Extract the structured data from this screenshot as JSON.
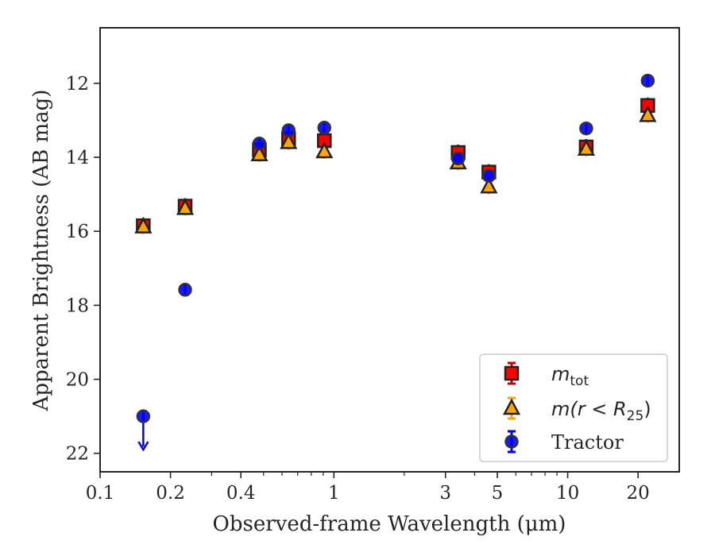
{
  "chart_data": {
    "type": "scatter",
    "title": "",
    "xlabel": "Observed-frame Wavelength (μm)",
    "ylabel": "Apparent Brightness (AB mag)",
    "xscale": "log",
    "xlim": [
      0.1,
      30
    ],
    "ylim": [
      22.5,
      10.5
    ],
    "y_inverted": true,
    "grid": false,
    "legend_position": "bottom-right",
    "x_ticks": [
      0.1,
      0.2,
      0.4,
      1,
      3,
      5,
      10,
      20
    ],
    "x_tick_labels": [
      "0.1",
      "0.2",
      "0.4",
      "1",
      "3",
      "5",
      "10",
      "20"
    ],
    "y_ticks": [
      12,
      14,
      16,
      18,
      20,
      22
    ],
    "y_tick_labels": [
      "12",
      "14",
      "16",
      "18",
      "20",
      "22"
    ],
    "series": [
      {
        "name": "m_tot",
        "legend_label_base": "m",
        "legend_label_sub": "tot",
        "marker": "square",
        "color": "#ff0000",
        "errcolor": "#cc0000",
        "points": [
          {
            "x": 0.153,
            "y": 15.85
          },
          {
            "x": 0.231,
            "y": 15.32
          },
          {
            "x": 0.48,
            "y": 13.8
          },
          {
            "x": 0.64,
            "y": 13.5
          },
          {
            "x": 0.91,
            "y": 13.55
          },
          {
            "x": 3.4,
            "y": 13.87
          },
          {
            "x": 4.6,
            "y": 14.4
          },
          {
            "x": 12.0,
            "y": 13.72
          },
          {
            "x": 22.0,
            "y": 12.6
          }
        ]
      },
      {
        "name": "m(r < R25)",
        "legend_label_base": "m(r < R",
        "legend_label_sub": "25",
        "legend_label_tail": ")",
        "marker": "triangle",
        "color": "#ffa500",
        "errcolor": "#ffa500",
        "points": [
          {
            "x": 0.153,
            "y": 15.88
          },
          {
            "x": 0.231,
            "y": 15.38
          },
          {
            "x": 0.48,
            "y": 13.93
          },
          {
            "x": 0.64,
            "y": 13.6
          },
          {
            "x": 0.91,
            "y": 13.85
          },
          {
            "x": 3.4,
            "y": 14.15
          },
          {
            "x": 4.6,
            "y": 14.8
          },
          {
            "x": 12.0,
            "y": 13.78
          },
          {
            "x": 22.0,
            "y": 12.87
          }
        ]
      },
      {
        "name": "Tractor",
        "legend_label_base": "Tractor",
        "marker": "circle",
        "color": "#0000ff",
        "errcolor": "#0000ff",
        "points": [
          {
            "x": 0.153,
            "y": 21.0,
            "upper_limit": true
          },
          {
            "x": 0.231,
            "y": 17.58
          },
          {
            "x": 0.48,
            "y": 13.63
          },
          {
            "x": 0.64,
            "y": 13.27
          },
          {
            "x": 0.91,
            "y": 13.2
          },
          {
            "x": 3.4,
            "y": 14.03
          },
          {
            "x": 4.6,
            "y": 14.5
          },
          {
            "x": 12.0,
            "y": 13.22
          },
          {
            "x": 22.0,
            "y": 11.93
          }
        ]
      }
    ]
  }
}
